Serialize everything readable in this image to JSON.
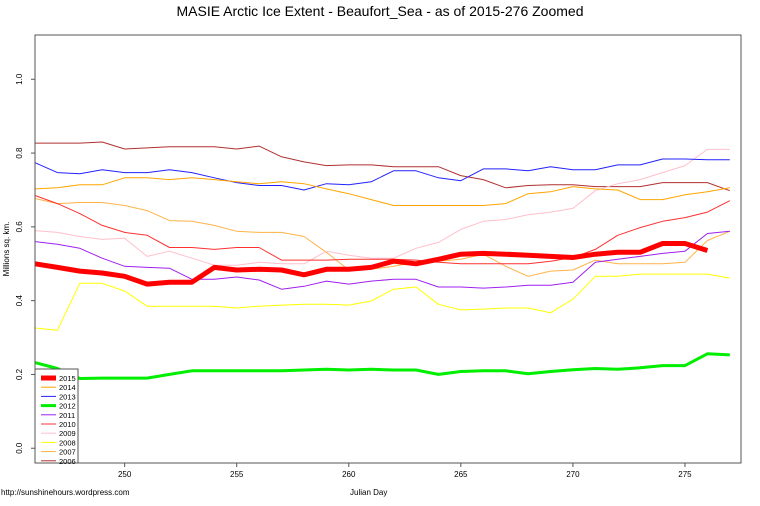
{
  "chart_data": {
    "type": "line",
    "title": "MASIE Arctic Ice Extent - Beaufort_Sea - as of 2015-276 Zoomed",
    "xlabel": "Julian Day",
    "ylabel": "Millions sq. km.",
    "xlim": [
      246,
      277.5
    ],
    "ylim": [
      -0.04,
      1.12
    ],
    "xticks": [
      250,
      255,
      260,
      265,
      270,
      275
    ],
    "yticks": [
      0.0,
      0.2,
      0.4,
      0.6,
      0.8,
      1.0
    ],
    "ytick_labels": [
      "0.0",
      "0.2",
      "0.4",
      "0.6",
      "0.8",
      "1.0"
    ],
    "grid": false,
    "legend_position": "bottom-left",
    "x": [
      246,
      247,
      248,
      249,
      250,
      251,
      252,
      253,
      254,
      255,
      256,
      257,
      258,
      259,
      260,
      261,
      262,
      263,
      264,
      265,
      266,
      267,
      268,
      269,
      270,
      271,
      272,
      273,
      274,
      275,
      276,
      277
    ],
    "series": [
      {
        "name": "2015",
        "color": "#FF0000",
        "width": 5,
        "values": [
          0.5,
          0.49,
          0.48,
          0.475,
          0.466,
          0.445,
          0.45,
          0.45,
          0.49,
          0.483,
          0.485,
          0.483,
          0.47,
          0.485,
          0.485,
          0.49,
          0.507,
          0.5,
          0.512,
          0.526,
          0.528,
          0.526,
          0.523,
          0.52,
          0.517,
          0.526,
          0.531,
          0.531,
          0.555,
          0.555,
          0.536,
          null
        ]
      },
      {
        "name": "2014",
        "color": "#FFA500",
        "width": 1,
        "values": [
          0.703,
          0.706,
          0.714,
          0.714,
          0.733,
          0.733,
          0.728,
          0.733,
          0.728,
          0.722,
          0.717,
          0.722,
          0.717,
          0.703,
          0.69,
          0.674,
          0.658,
          0.658,
          0.658,
          0.658,
          0.658,
          0.663,
          0.69,
          0.695,
          0.709,
          0.703,
          0.7,
          0.674,
          0.674,
          0.687,
          0.695,
          0.706
        ]
      },
      {
        "name": "2013",
        "color": "#2222FF",
        "width": 1,
        "values": [
          0.774,
          0.747,
          0.744,
          0.755,
          0.747,
          0.747,
          0.755,
          0.747,
          0.733,
          0.72,
          0.712,
          0.712,
          0.7,
          0.717,
          0.714,
          0.722,
          0.752,
          0.752,
          0.733,
          0.725,
          0.757,
          0.757,
          0.752,
          0.763,
          0.755,
          0.755,
          0.768,
          0.768,
          0.784,
          0.784,
          0.782,
          0.782
        ]
      },
      {
        "name": "2012",
        "color": "#00EE00",
        "width": 3,
        "values": [
          0.232,
          0.216,
          0.189,
          0.19,
          0.19,
          0.19,
          0.2,
          0.21,
          0.21,
          0.21,
          0.21,
          0.21,
          0.212,
          0.214,
          0.212,
          0.214,
          0.212,
          0.212,
          0.2,
          0.208,
          0.21,
          0.21,
          0.202,
          0.208,
          0.213,
          0.216,
          0.214,
          0.218,
          0.224,
          0.224,
          0.256,
          0.253
        ]
      },
      {
        "name": "2011",
        "color": "#A020F0",
        "width": 1,
        "values": [
          0.56,
          0.553,
          0.542,
          0.515,
          0.493,
          0.49,
          0.488,
          0.458,
          0.458,
          0.464,
          0.456,
          0.431,
          0.439,
          0.453,
          0.445,
          0.453,
          0.458,
          0.458,
          0.437,
          0.437,
          0.434,
          0.437,
          0.442,
          0.442,
          0.45,
          0.504,
          0.512,
          0.52,
          0.528,
          0.534,
          0.582,
          0.588
        ]
      },
      {
        "name": "2010",
        "color": "#FF3030",
        "width": 1,
        "values": [
          0.685,
          0.663,
          0.636,
          0.604,
          0.585,
          0.577,
          0.544,
          0.544,
          0.539,
          0.544,
          0.544,
          0.51,
          0.51,
          0.51,
          0.512,
          0.512,
          0.512,
          0.51,
          0.504,
          0.5,
          0.5,
          0.5,
          0.5,
          0.507,
          0.517,
          0.539,
          0.577,
          0.598,
          0.615,
          0.625,
          0.64,
          0.671
        ]
      },
      {
        "name": "2009",
        "color": "#FFC0CB",
        "width": 1,
        "values": [
          0.59,
          0.585,
          0.574,
          0.566,
          0.569,
          0.52,
          0.534,
          0.515,
          0.496,
          0.496,
          0.504,
          0.5,
          0.5,
          0.534,
          0.523,
          0.515,
          0.515,
          0.542,
          0.558,
          0.593,
          0.615,
          0.62,
          0.633,
          0.64,
          0.65,
          0.698,
          0.717,
          0.728,
          0.747,
          0.766,
          0.81,
          0.81
        ]
      },
      {
        "name": "2008",
        "color": "#FFFF00",
        "width": 1,
        "values": [
          0.326,
          0.32,
          0.447,
          0.447,
          0.426,
          0.385,
          0.385,
          0.385,
          0.385,
          0.38,
          0.385,
          0.388,
          0.39,
          0.39,
          0.388,
          0.399,
          0.431,
          0.437,
          0.39,
          0.375,
          0.377,
          0.38,
          0.38,
          0.367,
          0.404,
          0.466,
          0.466,
          0.472,
          0.472,
          0.472,
          0.472,
          0.461
        ]
      },
      {
        "name": "2007",
        "color": "#FFB347",
        "width": 1,
        "values": [
          0.677,
          0.663,
          0.666,
          0.666,
          0.658,
          0.644,
          0.617,
          0.615,
          0.604,
          0.588,
          0.585,
          0.585,
          0.574,
          0.531,
          0.483,
          0.485,
          0.493,
          0.504,
          0.507,
          0.512,
          0.526,
          0.493,
          0.466,
          0.48,
          0.483,
          0.51,
          0.5,
          0.5,
          0.5,
          0.504,
          0.563,
          0.588
        ]
      },
      {
        "name": "2006",
        "color": "#B03030",
        "width": 1,
        "values": [
          0.827,
          0.827,
          0.827,
          0.83,
          0.811,
          0.814,
          0.817,
          0.817,
          0.817,
          0.811,
          0.819,
          0.79,
          0.776,
          0.766,
          0.768,
          0.768,
          0.763,
          0.763,
          0.763,
          0.739,
          0.728,
          0.706,
          0.712,
          0.714,
          0.714,
          0.709,
          0.709,
          0.709,
          0.72,
          0.72,
          0.72,
          0.698
        ]
      }
    ]
  },
  "footer": "http://sunshinehours.wordpress.com"
}
